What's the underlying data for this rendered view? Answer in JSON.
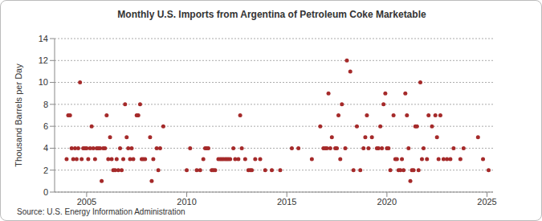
{
  "chart_data": {
    "type": "scatter",
    "title": "Monthly U.S. Imports from Argentina of Petroleum Coke Marketable",
    "y_label": "Thousand Barrels per Day",
    "source": "Source: U.S. Energy Information Administration",
    "color": "#a52a2a",
    "marker": "circle",
    "grid": true,
    "xlim": [
      2003.4,
      2025.3
    ],
    "xticks": [
      2005,
      2010,
      2015,
      2020,
      2025
    ],
    "ylim": [
      0,
      14
    ],
    "yticks": [
      0,
      2,
      4,
      6,
      8,
      10,
      12,
      14
    ],
    "x": [
      2004.0,
      2004.08,
      2004.17,
      2004.25,
      2004.33,
      2004.42,
      2004.5,
      2004.58,
      2004.67,
      2004.75,
      2004.83,
      2004.92,
      2005.0,
      2005.08,
      2005.17,
      2005.25,
      2005.33,
      2005.42,
      2005.5,
      2005.58,
      2005.67,
      2005.75,
      2005.83,
      2005.92,
      2006.0,
      2006.08,
      2006.17,
      2006.25,
      2006.33,
      2006.42,
      2006.5,
      2006.58,
      2006.67,
      2006.75,
      2006.83,
      2006.92,
      2007.0,
      2007.08,
      2007.17,
      2007.25,
      2007.33,
      2007.5,
      2007.58,
      2007.67,
      2007.75,
      2007.83,
      2007.92,
      2008.17,
      2008.25,
      2008.33,
      2008.5,
      2008.58,
      2008.67,
      2008.83,
      2010.0,
      2010.17,
      2010.5,
      2010.67,
      2010.83,
      2010.92,
      2011.0,
      2011.08,
      2011.25,
      2011.33,
      2011.42,
      2011.58,
      2011.67,
      2011.75,
      2011.83,
      2011.92,
      2012.0,
      2012.08,
      2012.17,
      2012.33,
      2012.42,
      2012.58,
      2012.67,
      2012.75,
      2012.92,
      2013.08,
      2013.17,
      2013.25,
      2013.42,
      2013.67,
      2013.92,
      2014.25,
      2014.67,
      2015.25,
      2015.58,
      2016.25,
      2016.67,
      2016.83,
      2016.92,
      2017.0,
      2017.08,
      2017.17,
      2017.25,
      2017.42,
      2017.5,
      2017.58,
      2017.67,
      2017.75,
      2017.92,
      2018.0,
      2018.17,
      2018.33,
      2018.5,
      2018.67,
      2018.83,
      2018.92,
      2019.0,
      2019.08,
      2019.25,
      2019.5,
      2019.58,
      2019.67,
      2019.75,
      2019.83,
      2019.92,
      2020.0,
      2020.08,
      2020.17,
      2020.33,
      2020.42,
      2020.5,
      2020.58,
      2020.67,
      2020.75,
      2020.83,
      2020.92,
      2021.0,
      2021.08,
      2021.17,
      2021.25,
      2021.33,
      2021.42,
      2021.5,
      2021.58,
      2021.67,
      2021.75,
      2021.83,
      2022.0,
      2022.08,
      2022.25,
      2022.42,
      2022.5,
      2022.58,
      2022.67,
      2022.83,
      2023.0,
      2023.17,
      2023.33,
      2023.67,
      2023.83,
      2024.55,
      2024.8,
      2025.08
    ],
    "values": [
      3,
      7,
      7,
      4,
      3,
      4,
      3,
      4,
      10,
      3,
      4,
      4,
      4,
      3,
      4,
      6,
      4,
      3,
      4,
      4,
      4,
      1,
      4,
      4,
      7,
      3,
      5,
      3,
      2,
      2,
      3,
      2,
      4,
      2,
      3,
      8,
      5,
      4,
      3,
      4,
      3,
      7,
      7,
      8,
      3,
      3,
      3,
      5,
      1,
      3,
      4,
      2,
      4,
      6,
      2,
      4,
      2,
      2,
      3,
      4,
      4,
      4,
      2,
      2,
      2,
      3,
      3,
      3,
      3,
      3,
      3,
      3,
      3,
      4,
      3,
      3,
      7,
      4,
      3,
      2,
      2,
      2,
      3,
      3,
      2,
      2,
      2,
      4,
      4,
      3,
      6,
      4,
      4,
      4,
      9,
      4,
      5,
      4,
      4,
      7,
      3,
      8,
      4,
      12,
      11,
      2,
      6,
      2,
      4,
      5,
      7,
      4,
      5,
      4,
      4,
      6,
      4,
      8,
      9,
      4,
      4,
      2,
      7,
      3,
      3,
      2,
      2,
      3,
      2,
      9,
      7,
      4,
      1,
      2,
      2,
      6,
      6,
      2,
      10,
      3,
      4,
      3,
      7,
      6,
      7,
      5,
      3,
      7,
      3,
      3,
      3,
      4,
      3,
      4,
      5,
      3,
      2
    ]
  }
}
